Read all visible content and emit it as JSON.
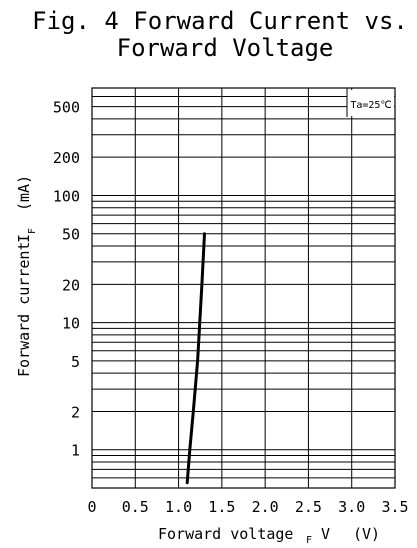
{
  "chart_data": {
    "type": "line",
    "title": "Fig. 4 Forward Current vs.",
    "subtitle": "Forward Voltage",
    "xlabel": "Forward voltage",
    "xlabel_sub": "F",
    "xlabel_var": "V",
    "xlabel_unit": "(V)",
    "ylabel": "Forward current",
    "ylabel_var": "I",
    "ylabel_sub": "F",
    "ylabel_unit": "(mA)",
    "annotation": "Ta=25℃",
    "x_ticks": [
      {
        "value": 0,
        "label": "0"
      },
      {
        "value": 0.5,
        "label": "0.5"
      },
      {
        "value": 1.0,
        "label": "1.0"
      },
      {
        "value": 1.5,
        "label": "1.5"
      },
      {
        "value": 2.0,
        "label": "2.0"
      },
      {
        "value": 2.5,
        "label": "2.5"
      },
      {
        "value": 3.0,
        "label": "3.0"
      },
      {
        "value": 3.5,
        "label": "3.5"
      }
    ],
    "y_ticks": [
      {
        "value": 1,
        "label": "1"
      },
      {
        "value": 2,
        "label": "2"
      },
      {
        "value": 5,
        "label": "5"
      },
      {
        "value": 10,
        "label": "10"
      },
      {
        "value": 20,
        "label": "20"
      },
      {
        "value": 50,
        "label": "50"
      },
      {
        "value": 100,
        "label": "100"
      },
      {
        "value": 200,
        "label": "200"
      },
      {
        "value": 500,
        "label": "500"
      }
    ],
    "xlim": [
      0,
      3.5
    ],
    "ylim": [
      0.5,
      700
    ],
    "y_scale": "log",
    "grid": true,
    "series": [
      {
        "x": [
          1.1,
          1.13,
          1.17,
          1.22,
          1.27,
          1.3
        ],
        "y": [
          0.55,
          1,
          2,
          5,
          20,
          50
        ]
      }
    ]
  }
}
